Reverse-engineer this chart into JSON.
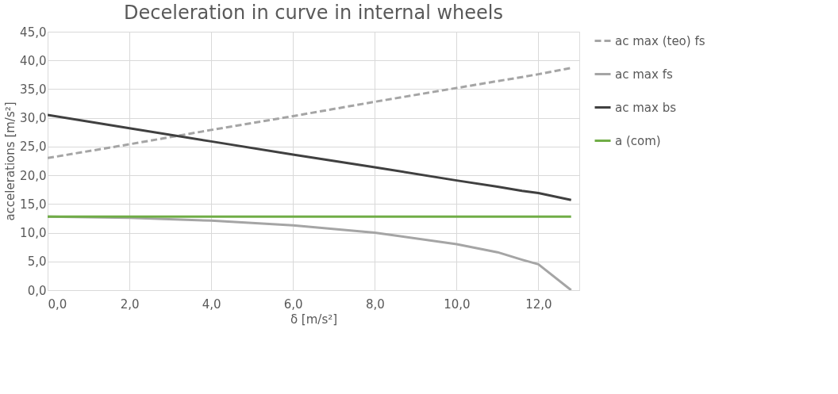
{
  "chart_data": {
    "type": "line",
    "title": "Deceleration in curve in internal wheels",
    "xlabel": "δ [m/s²]",
    "ylabel": "accelerations [m/s²]",
    "xlim": [
      0,
      13
    ],
    "ylim": [
      0,
      45
    ],
    "xticks": [
      {
        "value": 0,
        "label": "0,0"
      },
      {
        "value": 2,
        "label": "2,0"
      },
      {
        "value": 4,
        "label": "4,0"
      },
      {
        "value": 6,
        "label": "6,0"
      },
      {
        "value": 8,
        "label": "8,0"
      },
      {
        "value": 10,
        "label": "10,0"
      },
      {
        "value": 12,
        "label": "12,0"
      }
    ],
    "yticks": [
      {
        "value": 0,
        "label": "0,0"
      },
      {
        "value": 5,
        "label": "5,0"
      },
      {
        "value": 10,
        "label": "10,0"
      },
      {
        "value": 15,
        "label": "15,0"
      },
      {
        "value": 20,
        "label": "20,0"
      },
      {
        "value": 25,
        "label": "25,0"
      },
      {
        "value": 30,
        "label": "30,0"
      },
      {
        "value": 35,
        "label": "35,0"
      },
      {
        "value": 40,
        "label": "40,0"
      },
      {
        "value": 45,
        "label": "45,0"
      }
    ],
    "grid": true,
    "legend": "right",
    "marker": "none",
    "x": [
      0,
      2,
      4,
      6,
      8,
      10,
      11,
      11.6,
      12,
      12.8
    ],
    "series": [
      {
        "name": "ac max (teo) fs",
        "color": "#a5a5a5",
        "line_style": "dashed",
        "values": [
          23.0,
          25.4,
          27.9,
          30.3,
          32.8,
          35.2,
          36.4,
          37.1,
          37.6,
          38.7
        ]
      },
      {
        "name": "ac max fs",
        "color": "#a5a5a5",
        "line_style": "solid",
        "values": [
          12.8,
          12.6,
          12.1,
          11.3,
          10.0,
          8.0,
          6.6,
          5.3,
          4.5,
          0.0
        ]
      },
      {
        "name": "ac max bs",
        "color": "#404040",
        "line_style": "solid",
        "values": [
          30.5,
          28.2,
          25.9,
          23.6,
          21.4,
          19.1,
          18.0,
          17.3,
          16.9,
          15.7
        ]
      },
      {
        "name": "a (com)",
        "color": "#70ad47",
        "line_style": "solid",
        "values": [
          12.8,
          12.8,
          12.8,
          12.8,
          12.8,
          12.8,
          12.8,
          12.8,
          12.8,
          12.8
        ]
      }
    ]
  }
}
